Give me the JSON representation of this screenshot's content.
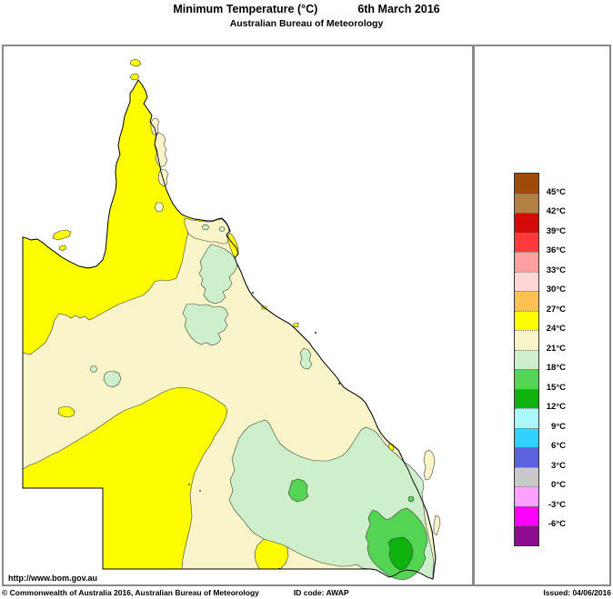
{
  "header": {
    "title": "Minimum Temperature (°C)",
    "date": "6th March 2016",
    "subtitle": "Australian Bureau of Meteorology"
  },
  "map": {
    "url_label": "http://www.bom.gov.au",
    "observed_bands": [
      "24-27°C",
      "21-24°C",
      "18-21°C",
      "15-18°C",
      "12-15°C"
    ]
  },
  "legend": {
    "colors": [
      "#A04A08",
      "#B28040",
      "#D40A0A",
      "#FF3A3A",
      "#FFA0A0",
      "#FFD6D6",
      "#FFC24E",
      "#FDFD00",
      "#F9F5C9",
      "#CDEFC9",
      "#53D453",
      "#0DB20D",
      "#ABF8FF",
      "#30D2FF",
      "#5A62DC",
      "#C9C9C9",
      "#FFA2FF",
      "#FB00FB",
      "#8E0D8E"
    ],
    "labels": [
      "45°C",
      "42°C",
      "39°C",
      "36°C",
      "33°C",
      "30°C",
      "27°C",
      "24°C",
      "21°C",
      "18°C",
      "15°C",
      "12°C",
      "9°C",
      "6°C",
      "3°C",
      "0°C",
      "-3°C",
      "-6°C"
    ]
  },
  "map_fills": {
    "sea": "#FFFFFF",
    "band_24_27": "#FDFD00",
    "band_21_24": "#F9F5C9",
    "band_18_21": "#CDEFC9",
    "band_15_18": "#53D453",
    "band_12_15": "#0DB20D",
    "outline": "#1a1a1a",
    "frame": "#8a8a8a"
  },
  "footer": {
    "copyright": "© Commonwealth of Australia 2016, Australian Bureau of Meteorology",
    "id_code": "ID code: AWAP",
    "issued": "Issued: 04/06/2016"
  }
}
